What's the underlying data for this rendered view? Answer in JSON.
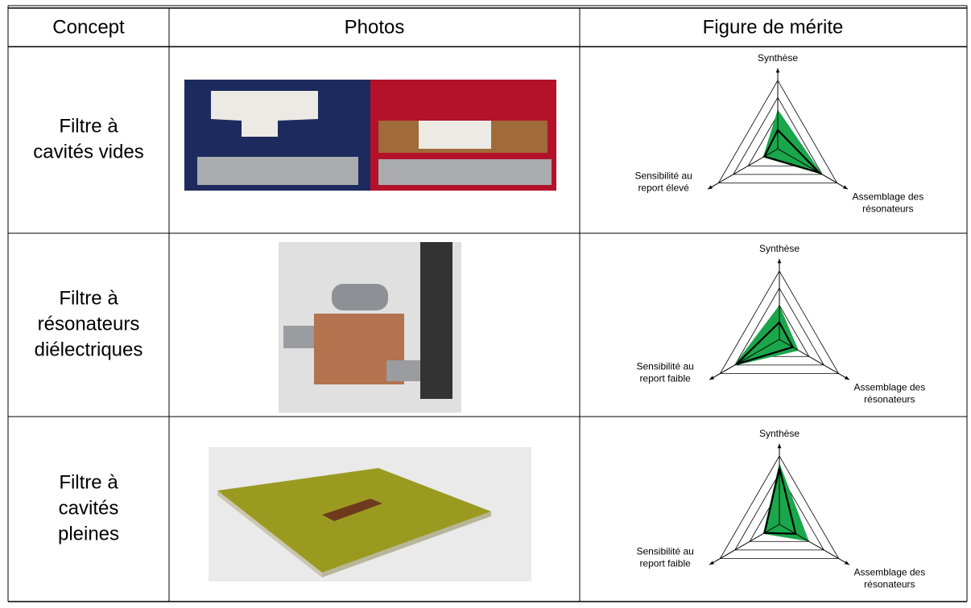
{
  "header": {
    "columns": [
      "Concept",
      "Photos",
      "Figure de mérite"
    ]
  },
  "rows": [
    {
      "concept": [
        "Filtre à",
        "cavités vides"
      ],
      "radar": {
        "labels": {
          "top": [
            "Synthèse"
          ],
          "left": [
            "Sensibilité au",
            "report élevé"
          ],
          "right": [
            "Assemblage des",
            "résonateurs"
          ]
        },
        "rlim": [
          0,
          4
        ],
        "rticks": [
          1,
          2,
          3,
          4
        ],
        "line": [
          1.1,
          0.9,
          2.8
        ],
        "area": [
          2.3,
          1.0,
          3.0
        ]
      }
    },
    {
      "concept": [
        "Filtre à",
        "résonateurs",
        "diélectriques"
      ],
      "radar": {
        "labels": {
          "top": [
            "Synthèse"
          ],
          "left": [
            "Sensibilité au",
            "report faible"
          ],
          "right": [
            "Assemblage des",
            "résonateurs"
          ]
        },
        "rlim": [
          0,
          4
        ],
        "rticks": [
          1,
          2,
          3,
          4
        ],
        "line": [
          1.0,
          2.9,
          0.9
        ],
        "area": [
          2.0,
          3.1,
          1.3
        ]
      }
    },
    {
      "concept": [
        "Filtre à",
        "cavités",
        "pleines"
      ],
      "radar": {
        "labels": {
          "top": [
            "Synthèse"
          ],
          "left": [
            "Sensibilité au",
            "report faible"
          ],
          "right": [
            "Assemblage des",
            "résonateurs"
          ]
        },
        "rlim": [
          0,
          4
        ],
        "rticks": [
          1,
          2,
          3,
          4
        ],
        "line": [
          3.3,
          1.0,
          1.1
        ],
        "area": [
          3.6,
          1.1,
          2.0
        ]
      }
    }
  ]
}
